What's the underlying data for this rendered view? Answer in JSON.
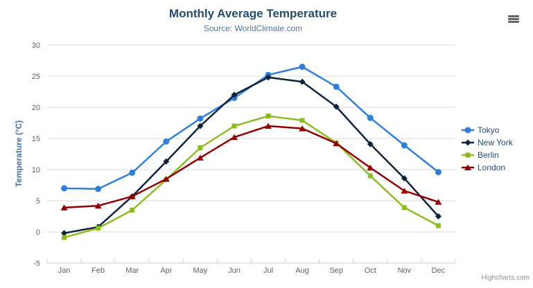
{
  "chart": {
    "title": "Monthly Average Temperature",
    "subtitle": "Source: WorldClimate.com",
    "credits": "Highcharts.com"
  },
  "icons": {
    "context_menu": "hamburger-icon"
  },
  "colors": {
    "title": "#274b6d",
    "subtitle": "#4d759e",
    "axis_label": "#606060",
    "axis_title": "#4572a7",
    "grid_line": "#d8d8d8",
    "axis_line": "#c0d0e0",
    "legend_text": "#274b6d",
    "credits_text": "#909090"
  },
  "chart_data": {
    "type": "line",
    "title": "Monthly Average Temperature",
    "subtitle": "Source: WorldClimate.com",
    "xlabel": "",
    "ylabel": "Temperature (°C)",
    "categories": [
      "Jan",
      "Feb",
      "Mar",
      "Apr",
      "May",
      "Jun",
      "Jul",
      "Aug",
      "Sep",
      "Oct",
      "Nov",
      "Dec"
    ],
    "ylim": [
      -5,
      30
    ],
    "yticks": [
      30,
      25,
      20,
      15,
      10,
      5,
      0,
      -5
    ],
    "grid": "horizontal",
    "legend_position": "right",
    "series": [
      {
        "name": "Tokyo",
        "color": "#2f7ed8",
        "marker": "circle",
        "values": [
          7.0,
          6.9,
          9.5,
          14.5,
          18.2,
          21.5,
          25.2,
          26.5,
          23.3,
          18.3,
          13.9,
          9.6
        ]
      },
      {
        "name": "New York",
        "color": "#0d233a",
        "marker": "diamond",
        "values": [
          -0.2,
          0.8,
          5.7,
          11.3,
          17.0,
          22.0,
          24.8,
          24.1,
          20.1,
          14.1,
          8.6,
          2.5
        ]
      },
      {
        "name": "Berlin",
        "color": "#8bbc21",
        "marker": "square",
        "values": [
          -0.9,
          0.6,
          3.5,
          8.4,
          13.5,
          17.0,
          18.6,
          17.9,
          14.3,
          9.0,
          3.9,
          1.0
        ]
      },
      {
        "name": "London",
        "color": "#910000",
        "marker": "triangle",
        "values": [
          3.9,
          4.2,
          5.7,
          8.5,
          11.9,
          15.2,
          17.0,
          16.6,
          14.2,
          10.3,
          6.6,
          4.8
        ]
      }
    ]
  }
}
